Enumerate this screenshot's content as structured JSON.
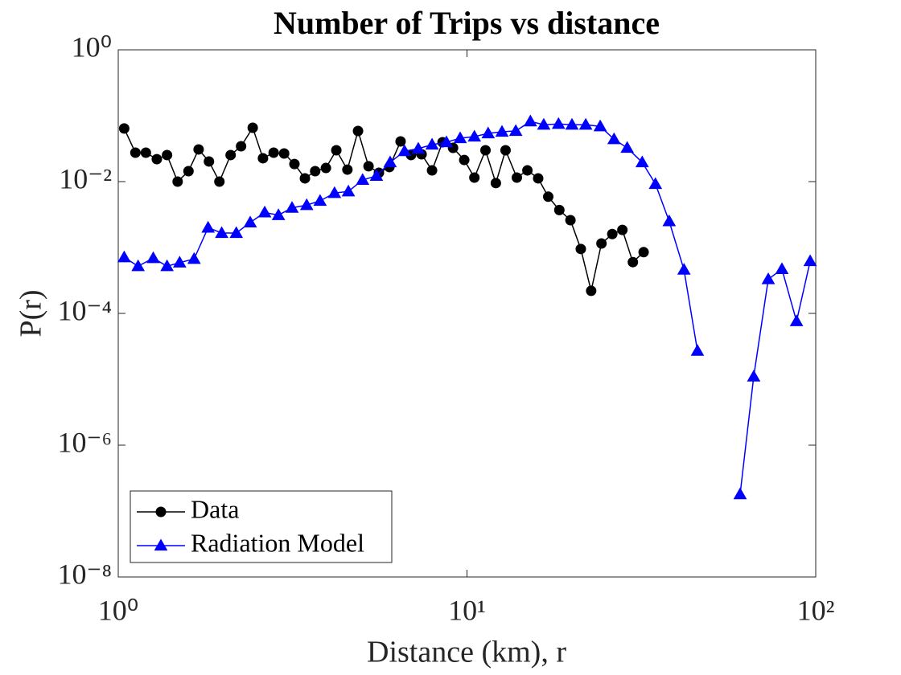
{
  "chart_data": {
    "type": "line",
    "title": "Number of Trips vs distance",
    "xlabel": "Distance (km), r",
    "ylabel": "P(r)",
    "xscale": "log",
    "yscale": "log",
    "xlim": [
      1,
      100
    ],
    "ylim": [
      1e-08,
      1
    ],
    "xticks": [
      {
        "value": 1,
        "label": "10⁰"
      },
      {
        "value": 10,
        "label": "10¹"
      },
      {
        "value": 100,
        "label": "10²"
      }
    ],
    "yticks": [
      {
        "value": 1e-08,
        "label": "10⁻⁸"
      },
      {
        "value": 1e-06,
        "label": "10⁻⁶"
      },
      {
        "value": 0.0001,
        "label": "10⁻⁴"
      },
      {
        "value": 0.01,
        "label": "10⁻²"
      },
      {
        "value": 1,
        "label": "10⁰"
      }
    ],
    "legend": "lower left",
    "series": [
      {
        "name": "Data",
        "color": "#000000",
        "marker": "circle",
        "x": [
          1.04,
          1.12,
          1.2,
          1.29,
          1.38,
          1.48,
          1.59,
          1.7,
          1.82,
          1.95,
          2.1,
          2.25,
          2.43,
          2.6,
          2.79,
          2.99,
          3.2,
          3.43,
          3.67,
          3.94,
          4.22,
          4.54,
          4.87,
          5.22,
          5.59,
          5.99,
          6.45,
          6.91,
          7.41,
          7.94,
          8.51,
          9.12,
          9.82,
          10.5,
          11.3,
          12.1,
          12.9,
          13.9,
          14.9,
          16.0,
          17.1,
          18.4,
          19.8,
          21.2,
          22.7,
          24.3,
          26.1,
          27.9,
          29.9,
          32.1
        ],
        "values": [
          0.064,
          0.0275,
          0.0275,
          0.0219,
          0.0253,
          0.01,
          0.0144,
          0.0308,
          0.0202,
          0.01,
          0.0253,
          0.0344,
          0.0656,
          0.0226,
          0.0275,
          0.0267,
          0.0185,
          0.0112,
          0.0144,
          0.0161,
          0.0299,
          0.0152,
          0.0587,
          0.0171,
          0.0136,
          0.0166,
          0.0407,
          0.0253,
          0.026,
          0.0148,
          0.0396,
          0.0325,
          0.0213,
          0.0115,
          0.0299,
          0.0095,
          0.0299,
          0.0115,
          0.0148,
          0.0112,
          0.0059,
          0.0037,
          0.0026,
          0.00095,
          0.00022,
          0.00115,
          0.0016,
          0.00185,
          0.0006,
          0.00085
        ]
      },
      {
        "name": "Radiation Model",
        "color": "#0000ff",
        "marker": "triangle",
        "x": [
          1.04,
          1.14,
          1.26,
          1.38,
          1.5,
          1.65,
          1.81,
          1.98,
          2.18,
          2.39,
          2.63,
          2.88,
          3.15,
          3.47,
          3.79,
          4.17,
          4.57,
          5.02,
          5.5,
          6.02,
          6.62,
          7.25,
          7.94,
          8.73,
          9.56,
          10.5,
          11.5,
          12.6,
          13.8,
          15.2,
          16.6,
          18.3,
          20.0,
          21.9,
          24.1,
          26.4,
          28.8,
          31.8,
          34.7,
          38.0,
          41.9,
          45.8,
          55.2,
          60.7,
          66.4,
          73.1,
          80.0,
          88.1,
          96.4
        ],
        "values": [
          0.00071,
          0.00052,
          0.00069,
          0.00052,
          0.00059,
          0.00067,
          0.002,
          0.00166,
          0.00166,
          0.0024,
          0.0034,
          0.0031,
          0.004,
          0.0044,
          0.0051,
          0.0067,
          0.0071,
          0.0106,
          0.0122,
          0.0196,
          0.029,
          0.0316,
          0.0364,
          0.0396,
          0.0456,
          0.0482,
          0.054,
          0.057,
          0.0587,
          0.082,
          0.073,
          0.075,
          0.073,
          0.073,
          0.069,
          0.044,
          0.0325,
          0.0196,
          0.0092,
          0.0025,
          0.00046,
          2.7e-05,
          null,
          1.8e-07,
          1.1e-05,
          0.00033,
          0.00047,
          7.6e-05,
          0.00062
        ]
      }
    ]
  }
}
